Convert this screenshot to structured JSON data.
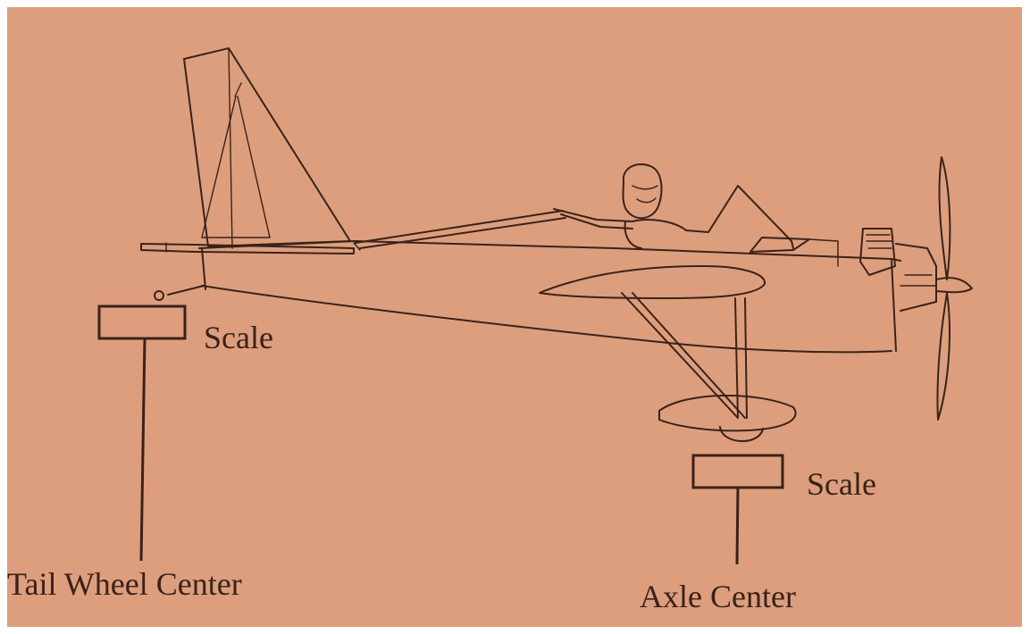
{
  "labels": {
    "scale_tail": "Scale",
    "scale_axle": "Scale",
    "tail_wheel_center": "Tail Wheel Center",
    "axle_center": "Axle Center"
  },
  "colors": {
    "paper": "#dd9e7e",
    "ink": "#3a2218"
  }
}
